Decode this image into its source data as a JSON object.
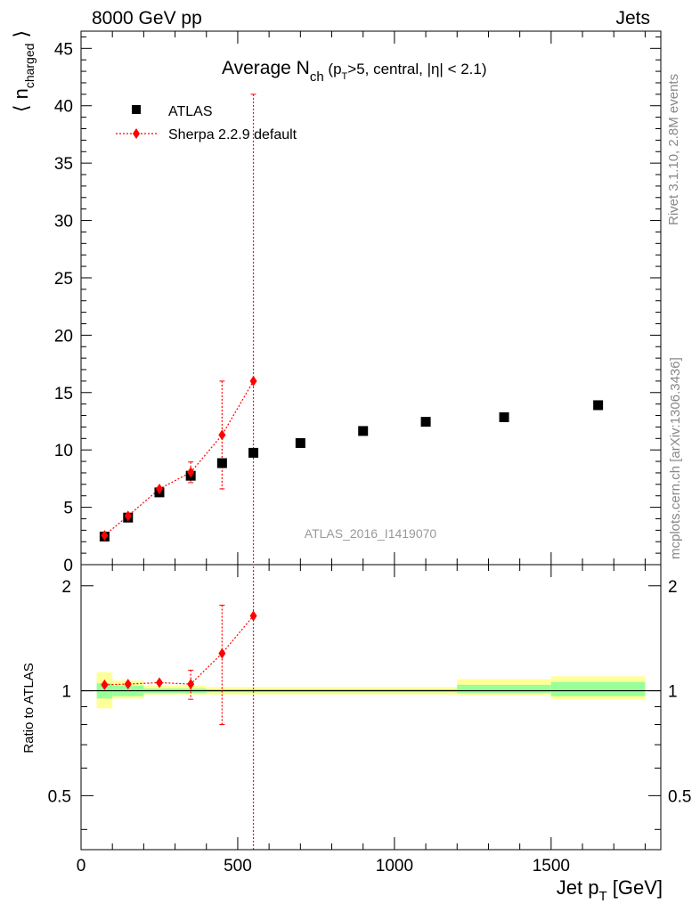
{
  "header": {
    "energy_label": "8000 GeV pp",
    "process_label": "Jets"
  },
  "side_labels": {
    "rivet": "Rivet 3.1.10,  2.8M events",
    "mcplots": "mcplots.cern.ch [arXiv:1306.3436]"
  },
  "watermark": "ATLAS_2016_I1419070",
  "colors": {
    "data": "#000000",
    "mc": "#ff0000",
    "band_inner": "#99ff99",
    "band_outer": "#ffff99",
    "watermark": "#999999",
    "side_text": "#888888"
  },
  "chart_data": [
    {
      "type": "scatter",
      "panel": "main",
      "title": "Average N_ch (p_T>5, central, |η| < 2.1)",
      "ylabel": "⟨ n_charged ⟩",
      "xlim": [
        0,
        1850
      ],
      "ylim": [
        0,
        46.5
      ],
      "yticks": [
        5,
        10,
        15,
        20,
        25,
        30,
        35,
        40,
        45
      ],
      "legend_position": "top-left",
      "series": [
        {
          "name": "ATLAS",
          "marker": "square",
          "color": "#000000",
          "x": [
            75,
            150,
            250,
            350,
            450,
            550,
            700,
            900,
            1100,
            1350,
            1650
          ],
          "y": [
            2.45,
            4.1,
            6.3,
            7.75,
            8.85,
            9.75,
            10.6,
            11.65,
            12.45,
            12.85,
            13.9
          ],
          "xerr": [
            25,
            50,
            50,
            50,
            50,
            50,
            100,
            100,
            100,
            150,
            150
          ]
        },
        {
          "name": "Sherpa 2.2.9 default",
          "marker": "diamond",
          "line": "dotted",
          "color": "#ff0000",
          "x": [
            75,
            150,
            250,
            350,
            450,
            550
          ],
          "y": [
            2.55,
            4.25,
            6.6,
            8.05,
            11.3,
            16.0
          ],
          "yerr_low": [
            0.1,
            0.1,
            0.1,
            0.9,
            4.7,
            16.0
          ],
          "yerr_high": [
            0.1,
            0.1,
            0.1,
            0.9,
            4.7,
            25.0
          ]
        }
      ]
    },
    {
      "type": "scatter",
      "panel": "ratio",
      "ylabel": "Ratio to ATLAS",
      "xlabel": "Jet p_T [GeV]",
      "xlim": [
        0,
        1850
      ],
      "ylim": [
        0.35,
        2.3
      ],
      "y_scale": "log",
      "yticks": [
        0.5,
        1,
        2
      ],
      "xticks": [
        0,
        500,
        1000,
        1500
      ],
      "reference_line": 1,
      "bands": [
        {
          "x0": 50,
          "x1": 100,
          "inner": [
            0.95,
            1.05
          ],
          "outer": [
            0.89,
            1.13
          ]
        },
        {
          "x0": 100,
          "x1": 200,
          "inner": [
            0.965,
            1.035
          ],
          "outer": [
            0.95,
            1.07
          ]
        },
        {
          "x0": 200,
          "x1": 400,
          "inner": [
            0.985,
            1.015
          ],
          "outer": [
            0.975,
            1.035
          ]
        },
        {
          "x0": 400,
          "x1": 1200,
          "inner": [
            0.99,
            1.01
          ],
          "outer": [
            0.975,
            1.025
          ]
        },
        {
          "x0": 1200,
          "x1": 1500,
          "inner": [
            0.985,
            1.04
          ],
          "outer": [
            0.97,
            1.08
          ]
        },
        {
          "x0": 1500,
          "x1": 1800,
          "inner": [
            0.965,
            1.06
          ],
          "outer": [
            0.945,
            1.1
          ]
        }
      ],
      "series": [
        {
          "name": "Sherpa 2.2.9 default",
          "color": "#ff0000",
          "x": [
            75,
            150,
            250,
            350,
            450,
            550
          ],
          "y": [
            1.04,
            1.045,
            1.055,
            1.045,
            1.28,
            1.64
          ],
          "yerr_low": [
            0.01,
            0.01,
            0.01,
            0.1,
            0.48,
            1.3
          ],
          "yerr_high": [
            0.01,
            0.01,
            0.01,
            0.1,
            0.48,
            2.0
          ]
        }
      ]
    }
  ]
}
